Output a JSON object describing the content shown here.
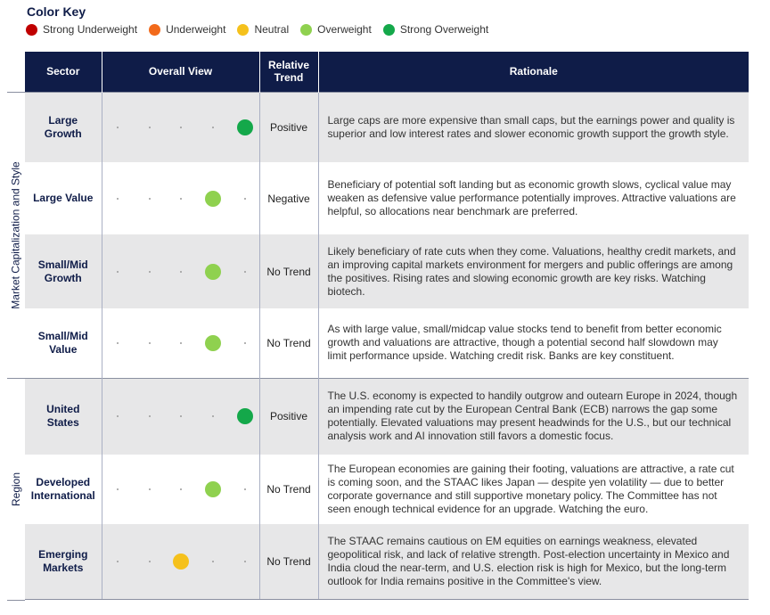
{
  "color_key": {
    "title": "Color Key",
    "items": [
      {
        "label": "Strong Underweight",
        "color": "#c00000"
      },
      {
        "label": "Underweight",
        "color": "#f26a1b"
      },
      {
        "label": "Neutral",
        "color": "#f5c11c"
      },
      {
        "label": "Overweight",
        "color": "#8fd14f"
      },
      {
        "label": "Strong Overweight",
        "color": "#14a84a"
      }
    ]
  },
  "table": {
    "headers": {
      "sector": "Sector",
      "overall_view": "Overall View",
      "relative_trend": "Relative Trend",
      "rationale": "Rationale"
    },
    "groups": [
      {
        "label": "Market Capitalization and Style"
      },
      {
        "label": "Region"
      }
    ],
    "rows": [
      {
        "sector": "Large Growth",
        "view": 4,
        "trend": "Positive",
        "rationale": "Large caps are more expensive than small caps, but the earnings power and quality is superior and low interest rates and slower economic growth support the growth style."
      },
      {
        "sector": "Large Value",
        "view": 3,
        "trend": "Negative",
        "rationale": "Beneficiary of potential soft landing but as economic growth slows, cyclical value may weaken as defensive value performance potentially improves. Attractive valuations are helpful, so allocations near benchmark are preferred."
      },
      {
        "sector": "Small/Mid Growth",
        "view": 3,
        "trend": "No Trend",
        "rationale": "Likely beneficiary of rate cuts when they come. Valuations, healthy credit markets, and an improving capital markets environment for mergers and public offerings are among the positives. Rising rates and slowing economic growth are key risks. Watching biotech."
      },
      {
        "sector": "Small/Mid Value",
        "view": 3,
        "trend": "No Trend",
        "rationale": "As with large value, small/midcap value stocks tend to benefit from better economic growth and valuations are attractive, though a potential second half slowdown may limit performance upside. Watching credit risk. Banks are key constituent."
      },
      {
        "sector": "United States",
        "view": 4,
        "trend": "Positive",
        "rationale": "The U.S. economy is expected to handily outgrow and outearn Europe in 2024, though an impending rate cut by the European Central Bank (ECB) narrows the gap some potentially. Elevated valuations may present headwinds for the U.S., but our technical analysis work and AI innovation still favors a domestic focus."
      },
      {
        "sector": "Developed International",
        "view": 3,
        "trend": "No Trend",
        "rationale": "The European economies are gaining their footing, valuations are attractive, a rate cut is coming soon, and the STAAC likes Japan — despite yen volatility — due to better corporate governance and still supportive monetary policy. The Committee has not seen enough technical evidence for an upgrade. Watching the euro."
      },
      {
        "sector": "Emerging Markets",
        "view": 2,
        "trend": "No Trend",
        "rationale": "The STAAC remains cautious on EM equities on earnings weakness, elevated geopolitical risk, and lack of relative strength. Post-election uncertainty in Mexico and India cloud the near-term, and U.S. election risk is high for Mexico, but the long-term outlook for India remains positive in the Committee's view."
      }
    ]
  }
}
